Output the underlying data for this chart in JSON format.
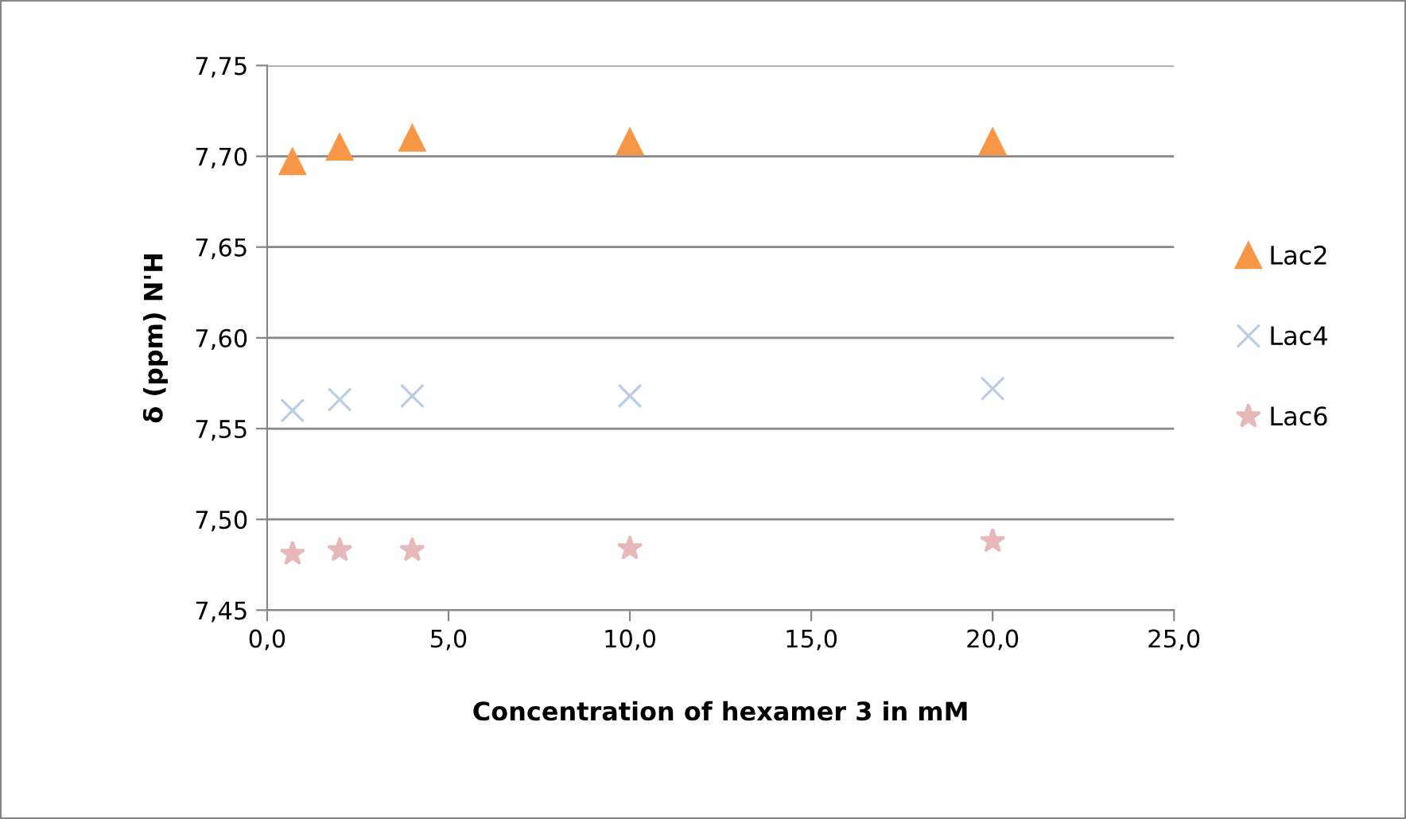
{
  "chart_data": {
    "type": "scatter",
    "xlabel": "Concentration of hexamer 3 in mM",
    "ylabel": "δ (ppm) N'H",
    "x": [
      0.7,
      2,
      4,
      10,
      20
    ],
    "series": [
      {
        "name": "Lac2",
        "color": "#f79646",
        "marker": "triangle",
        "values": [
          7.697,
          7.705,
          7.71,
          7.708,
          7.708
        ]
      },
      {
        "name": "Lac4",
        "color": "#b9cde5",
        "marker": "cross",
        "values": [
          7.56,
          7.566,
          7.568,
          7.568,
          7.572
        ]
      },
      {
        "name": "Lac6",
        "color": "#e6b9b8",
        "marker": "star",
        "values": [
          7.481,
          7.483,
          7.483,
          7.484,
          7.488
        ]
      }
    ],
    "xlim": [
      0,
      25
    ],
    "xticks": [
      {
        "value": 0,
        "label": "0,0"
      },
      {
        "value": 5,
        "label": "5,0"
      },
      {
        "value": 10,
        "label": "10,0"
      },
      {
        "value": 15,
        "label": "15,0"
      },
      {
        "value": 20,
        "label": "20,0"
      },
      {
        "value": 25,
        "label": "25,0"
      }
    ],
    "ylim": [
      7.45,
      7.75
    ],
    "yticks": [
      {
        "value": 7.45,
        "label": "7,45"
      },
      {
        "value": 7.5,
        "label": "7,50"
      },
      {
        "value": 7.55,
        "label": "7,55"
      },
      {
        "value": 7.6,
        "label": "7,60"
      },
      {
        "value": 7.65,
        "label": "7,65"
      },
      {
        "value": 7.7,
        "label": "7,70"
      },
      {
        "value": 7.75,
        "label": "7,75"
      }
    ],
    "grid": "y",
    "legend": "right"
  }
}
